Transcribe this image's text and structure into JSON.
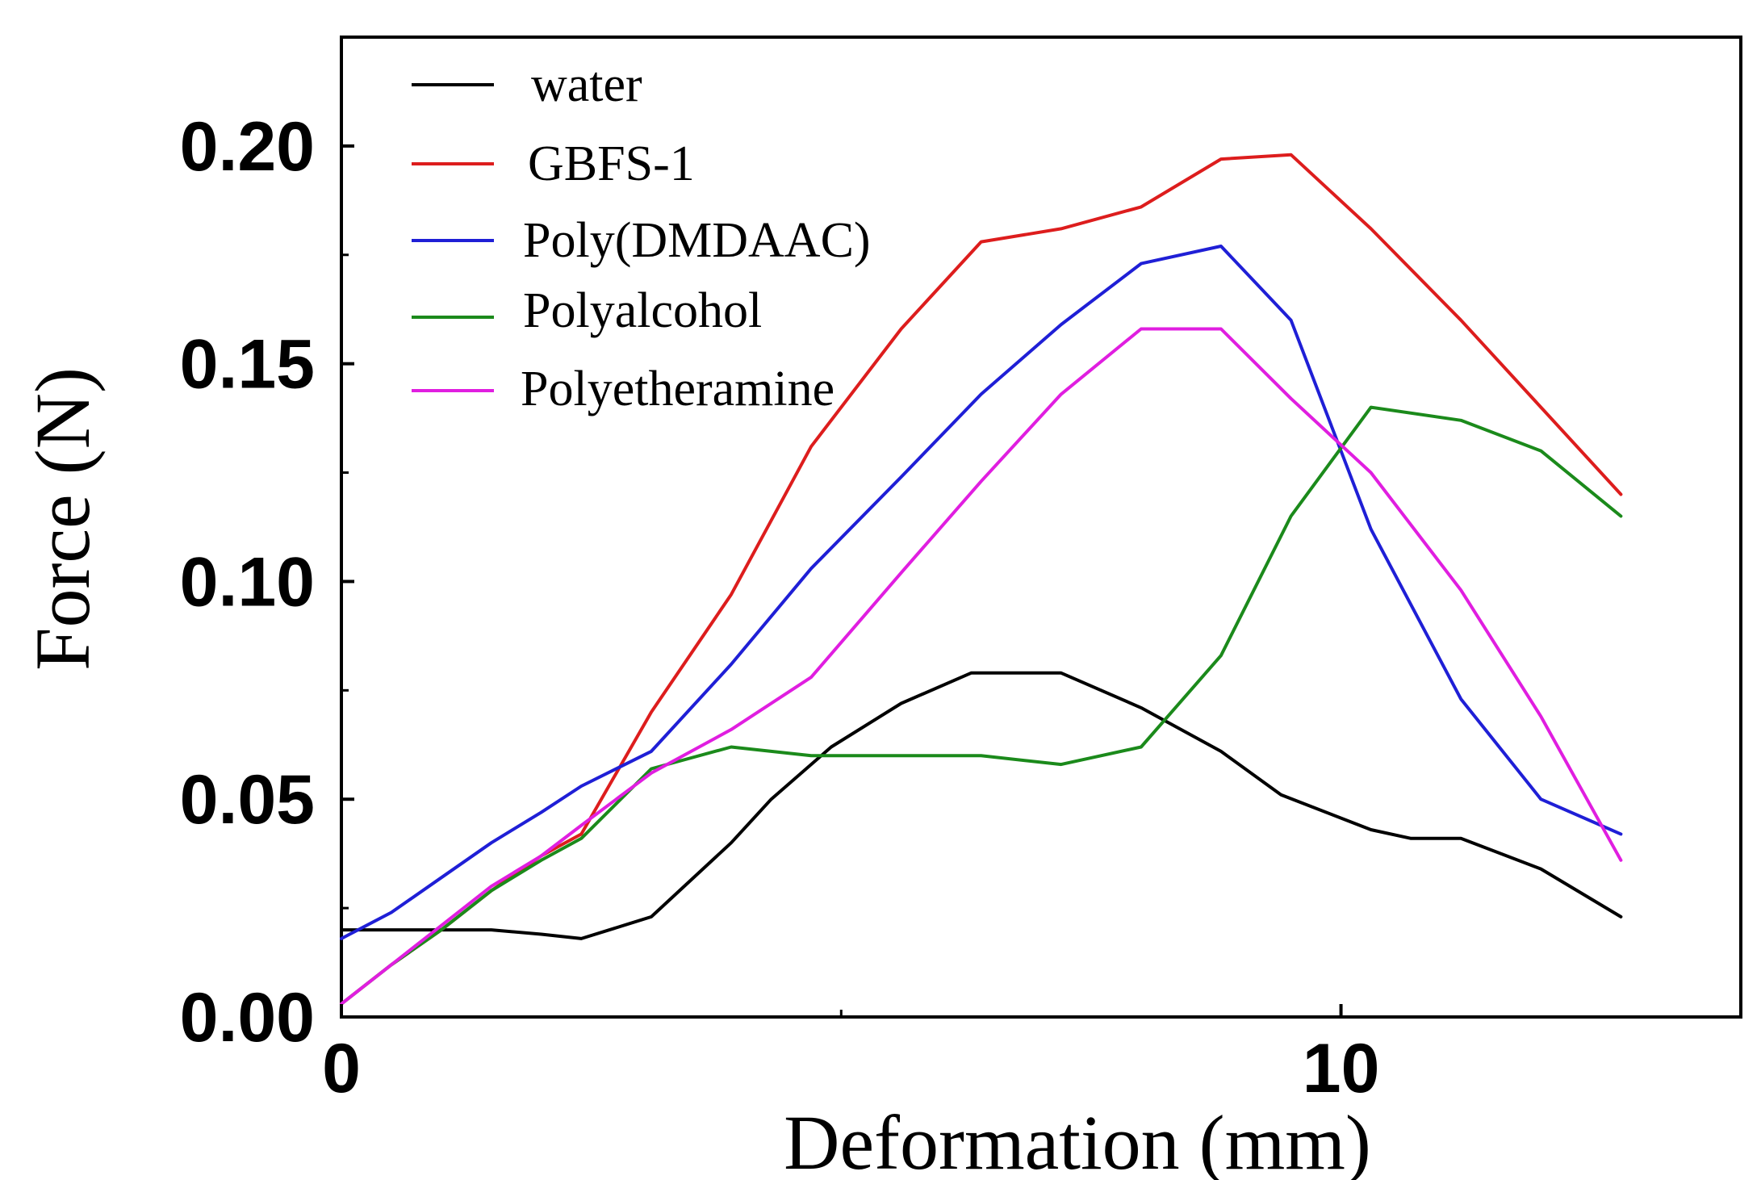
{
  "chart_data": {
    "type": "line",
    "title": "",
    "xlabel": "Deformation (mm)",
    "ylabel": "Force (N)",
    "xlim": [
      0,
      14
    ],
    "ylim": [
      0,
      0.225
    ],
    "x_ticks": [
      0,
      10
    ],
    "x_tick_labels": [
      "0",
      "10"
    ],
    "y_ticks": [
      0,
      0.05,
      0.1,
      0.15,
      0.2
    ],
    "y_tick_labels": [
      "0.00",
      "0.05",
      "0.10",
      "0.15",
      "0.20"
    ],
    "legend_position": "top-left",
    "series": [
      {
        "name": "water",
        "color": "#000000",
        "x": [
          0,
          0.5,
          1.0,
          1.5,
          2.0,
          2.4,
          3.1,
          3.9,
          4.3,
          4.9,
          5.6,
          6.3,
          6.6,
          7.2,
          8.0,
          8.8,
          9.4,
          10.3,
          10.7,
          11.2,
          12.0,
          12.8
        ],
        "y": [
          0.02,
          0.02,
          0.02,
          0.02,
          0.019,
          0.018,
          0.023,
          0.04,
          0.05,
          0.062,
          0.072,
          0.079,
          0.079,
          0.079,
          0.071,
          0.061,
          0.051,
          0.043,
          0.041,
          0.041,
          0.034,
          0.023
        ]
      },
      {
        "name": "GBFS-1",
        "color": "#dd1d1d",
        "x": [
          0,
          0.5,
          1.0,
          1.5,
          2.0,
          2.4,
          3.1,
          3.9,
          4.7,
          5.6,
          6.4,
          7.2,
          8.0,
          8.8,
          9.5,
          10.3,
          11.2,
          12.0,
          12.8
        ],
        "y": [
          0.003,
          0.012,
          0.02,
          0.029,
          0.037,
          0.042,
          0.07,
          0.097,
          0.131,
          0.158,
          0.178,
          0.181,
          0.186,
          0.197,
          0.198,
          0.181,
          0.16,
          0.14,
          0.12
        ]
      },
      {
        "name": "Poly(DMDAAC)",
        "color": "#1f1fd6",
        "x": [
          0,
          0.5,
          1.0,
          1.5,
          2.0,
          2.4,
          3.1,
          3.9,
          4.7,
          5.6,
          6.4,
          7.2,
          8.0,
          8.8,
          9.5,
          10.3,
          11.2,
          12.0,
          12.8
        ],
        "y": [
          0.018,
          0.024,
          0.032,
          0.04,
          0.047,
          0.053,
          0.061,
          0.081,
          0.103,
          0.124,
          0.143,
          0.159,
          0.173,
          0.177,
          0.16,
          0.112,
          0.073,
          0.05,
          0.042
        ]
      },
      {
        "name": "Polyalcohol",
        "color": "#1b8a1b",
        "x": [
          0,
          0.5,
          1.0,
          1.5,
          2.0,
          2.4,
          3.1,
          3.9,
          4.7,
          5.6,
          6.4,
          7.2,
          8.0,
          8.8,
          9.5,
          10.3,
          11.2,
          12.0,
          12.8
        ],
        "y": [
          0.003,
          0.012,
          0.02,
          0.029,
          0.036,
          0.041,
          0.057,
          0.062,
          0.06,
          0.06,
          0.06,
          0.058,
          0.062,
          0.083,
          0.115,
          0.14,
          0.137,
          0.13,
          0.115
        ]
      },
      {
        "name": "Polyetheramine",
        "color": "#e01ee0",
        "x": [
          0,
          0.5,
          1.0,
          1.5,
          2.0,
          2.4,
          3.1,
          3.9,
          4.7,
          5.6,
          6.4,
          7.2,
          8.0,
          8.8,
          9.5,
          10.3,
          11.2,
          12.0,
          12.8
        ],
        "y": [
          0.003,
          0.012,
          0.021,
          0.03,
          0.037,
          0.044,
          0.056,
          0.066,
          0.078,
          0.102,
          0.123,
          0.143,
          0.158,
          0.158,
          0.142,
          0.125,
          0.098,
          0.069,
          0.036
        ]
      }
    ]
  }
}
